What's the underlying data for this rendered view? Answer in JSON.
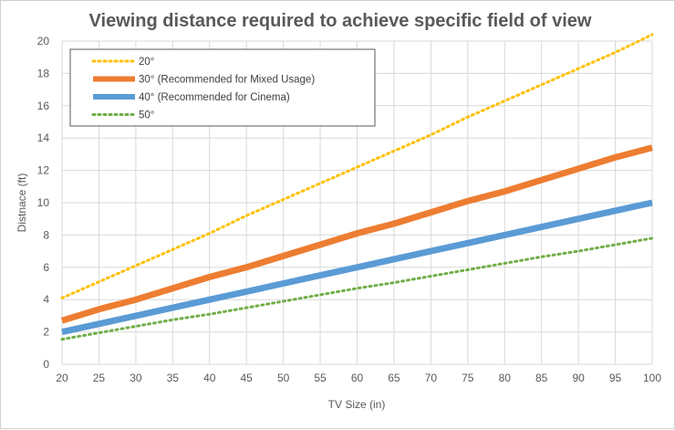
{
  "chart_data": {
    "type": "line",
    "title": "Viewing distance required to achieve specific field of view",
    "xlabel": "TV Size (in)",
    "ylabel": "Distnace (ft)",
    "xlim": [
      20,
      100
    ],
    "ylim": [
      0,
      20
    ],
    "x_ticks": [
      20,
      25,
      30,
      35,
      40,
      45,
      50,
      55,
      60,
      65,
      70,
      75,
      80,
      85,
      90,
      95,
      100
    ],
    "y_ticks": [
      0,
      2,
      4,
      6,
      8,
      10,
      12,
      14,
      16,
      18,
      20
    ],
    "x": [
      20,
      25,
      30,
      35,
      40,
      45,
      50,
      55,
      60,
      65,
      70,
      75,
      80,
      85,
      90,
      95,
      100
    ],
    "grid": "on",
    "legend_position": "top-left",
    "series": [
      {
        "name": "20°",
        "color": "#FFC000",
        "style": "dotted",
        "values": [
          4.1,
          5.1,
          6.1,
          7.1,
          8.1,
          9.2,
          10.2,
          11.2,
          12.2,
          13.2,
          14.2,
          15.3,
          16.3,
          17.3,
          18.3,
          19.3,
          20.4
        ]
      },
      {
        "name": "30° (Recommended for Mixed Usage)",
        "color": "#ED7D31",
        "style": "solid",
        "values": [
          2.7,
          3.4,
          4.0,
          4.7,
          5.4,
          6.0,
          6.7,
          7.4,
          8.1,
          8.7,
          9.4,
          10.1,
          10.7,
          11.4,
          12.1,
          12.8,
          13.4
        ]
      },
      {
        "name": "40° (Recommended for Cinema)",
        "color": "#5B9BD5",
        "style": "solid",
        "values": [
          2.0,
          2.5,
          3.0,
          3.5,
          4.0,
          4.5,
          5.0,
          5.5,
          6.0,
          6.5,
          7.0,
          7.5,
          8.0,
          8.5,
          9.0,
          9.5,
          10.0
        ]
      },
      {
        "name": "50°",
        "color": "#70AD47",
        "style": "dotted",
        "values": [
          1.55,
          1.95,
          2.35,
          2.75,
          3.1,
          3.5,
          3.9,
          4.3,
          4.7,
          5.05,
          5.45,
          5.85,
          6.25,
          6.65,
          7.0,
          7.4,
          7.8
        ]
      }
    ]
  }
}
